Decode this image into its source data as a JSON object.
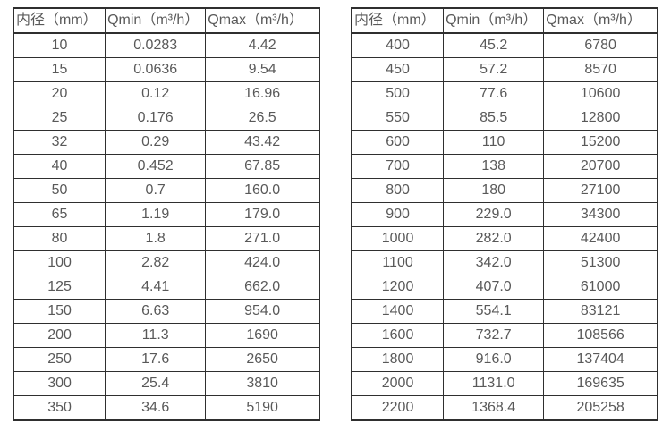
{
  "colors": {
    "background": "#ffffff",
    "text": "#595959",
    "border": "#2f2f2f"
  },
  "tables": [
    {
      "name": "flow-table-small-diameters",
      "headers": [
        "内径（mm）",
        "Qmin（m³/h）",
        "Qmax（m³/h）"
      ],
      "rows": [
        [
          "10",
          "0.0283",
          "4.42"
        ],
        [
          "15",
          "0.0636",
          "9.54"
        ],
        [
          "20",
          "0.12",
          "16.96"
        ],
        [
          "25",
          "0.176",
          "26.5"
        ],
        [
          "32",
          "0.29",
          "43.42"
        ],
        [
          "40",
          "0.452",
          "67.85"
        ],
        [
          "50",
          "0.7",
          "160.0"
        ],
        [
          "65",
          "1.19",
          "179.0"
        ],
        [
          "80",
          "1.8",
          "271.0"
        ],
        [
          "100",
          "2.82",
          "424.0"
        ],
        [
          "125",
          "4.41",
          "662.0"
        ],
        [
          "150",
          "6.63",
          "954.0"
        ],
        [
          "200",
          "11.3",
          "1690"
        ],
        [
          "250",
          "17.6",
          "2650"
        ],
        [
          "300",
          "25.4",
          "3810"
        ],
        [
          "350",
          "34.6",
          "5190"
        ]
      ]
    },
    {
      "name": "flow-table-large-diameters",
      "headers": [
        "内径（mm）",
        "Qmin（m³/h）",
        "Qmax（m³/h）"
      ],
      "rows": [
        [
          "400",
          "45.2",
          "6780"
        ],
        [
          "450",
          "57.2",
          "8570"
        ],
        [
          "500",
          "77.6",
          "10600"
        ],
        [
          "550",
          "85.5",
          "12800"
        ],
        [
          "600",
          "110",
          "15200"
        ],
        [
          "700",
          "138",
          "20700"
        ],
        [
          "800",
          "180",
          "27100"
        ],
        [
          "900",
          "229.0",
          "34300"
        ],
        [
          "1000",
          "282.0",
          "42400"
        ],
        [
          "1100",
          "342.0",
          "51300"
        ],
        [
          "1200",
          "407.0",
          "61000"
        ],
        [
          "1400",
          "554.1",
          "83121"
        ],
        [
          "1600",
          "732.7",
          "108566"
        ],
        [
          "1800",
          "916.0",
          "137404"
        ],
        [
          "2000",
          "1131.0",
          "169635"
        ],
        [
          "2200",
          "1368.4",
          "205258"
        ]
      ]
    }
  ]
}
